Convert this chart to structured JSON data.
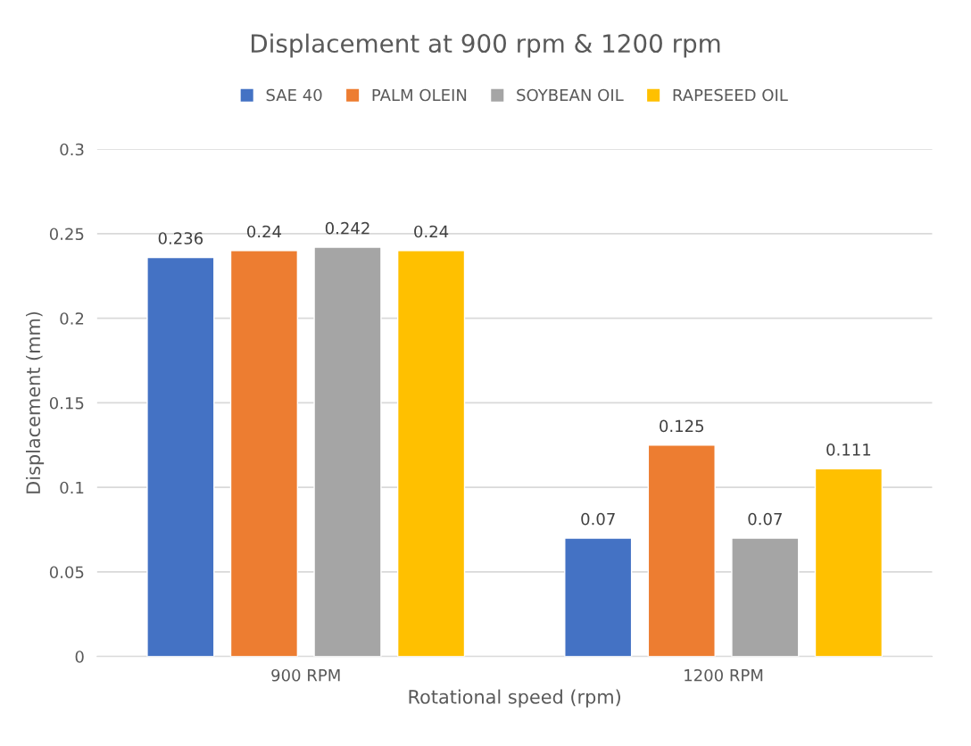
{
  "chart_data": {
    "type": "bar",
    "title": "Displacement at 900 rpm & 1200 rpm",
    "xlabel": "Rotational speed (rpm)",
    "ylabel": "Displacement (mm)",
    "categories": [
      "900 RPM",
      "1200 RPM"
    ],
    "series": [
      {
        "name": "SAE 40",
        "color": "#4472c4",
        "values": [
          0.236,
          0.07
        ]
      },
      {
        "name": "PALM OLEIN",
        "color": "#ed7d31",
        "values": [
          0.24,
          0.125
        ]
      },
      {
        "name": "SOYBEAN OIL",
        "color": "#a5a5a5",
        "values": [
          0.242,
          0.07
        ]
      },
      {
        "name": "RAPESEED OIL",
        "color": "#ffc000",
        "values": [
          0.24,
          0.111
        ]
      }
    ],
    "ylim": [
      0,
      0.3
    ],
    "yticks": [
      0,
      0.05,
      0.1,
      0.15,
      0.2,
      0.25,
      0.3
    ],
    "grid": "y",
    "legend": "top",
    "data_labels": true
  }
}
